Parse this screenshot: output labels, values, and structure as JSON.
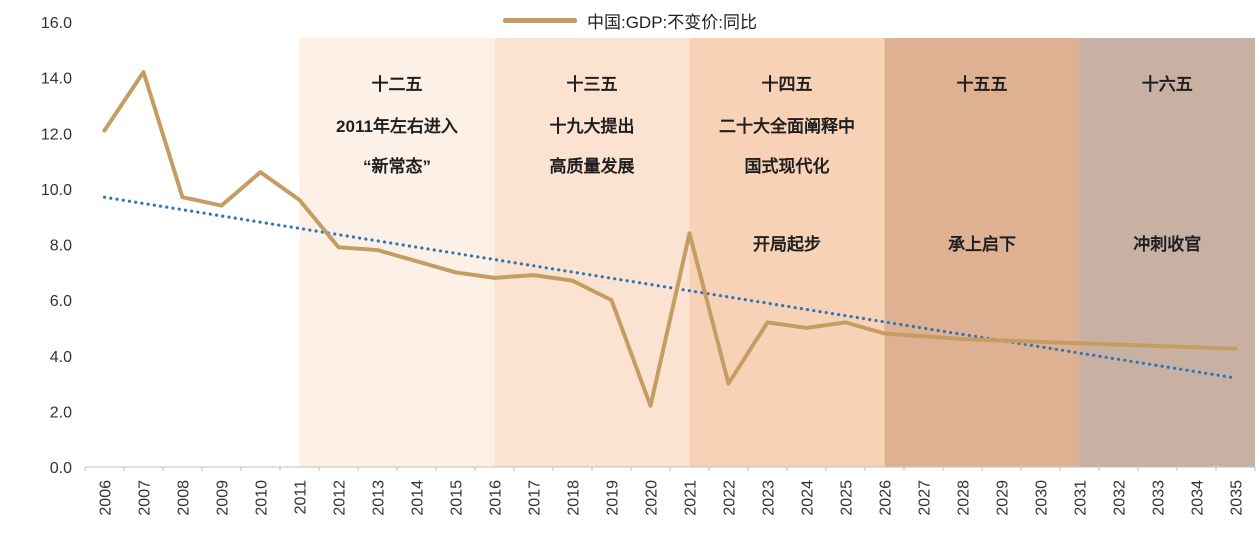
{
  "legend": {
    "label": "中国:GDP:不变价:同比"
  },
  "chart_data": {
    "type": "line",
    "x": [
      "2006",
      "2007",
      "2008",
      "2009",
      "2010",
      "2011",
      "2012",
      "2013",
      "2014",
      "2015",
      "2016",
      "2017",
      "2018",
      "2019",
      "2020",
      "2021",
      "2022",
      "2023",
      "2024",
      "2025",
      "2026",
      "2027",
      "2028",
      "2029",
      "2030",
      "2031",
      "2032",
      "2033",
      "2034",
      "2035"
    ],
    "series": [
      {
        "name": "中国:GDP:不变价:同比",
        "color": "#c59d63",
        "values": [
          12.1,
          14.2,
          9.7,
          9.4,
          10.6,
          9.6,
          7.9,
          7.8,
          7.4,
          7.0,
          6.8,
          6.9,
          6.7,
          6.0,
          2.2,
          8.4,
          3.0,
          5.2,
          5.0,
          5.2,
          4.8,
          4.7,
          4.6,
          4.55,
          4.5,
          4.45,
          4.4,
          4.35,
          4.3,
          4.25
        ]
      }
    ],
    "trend": {
      "style": "dotted",
      "color": "#2e75b6",
      "start_value": 9.7,
      "end_value": 3.2
    },
    "ylim": [
      0,
      16
    ],
    "ytick_labels": [
      "0.0",
      "2.0",
      "4.0",
      "6.0",
      "8.0",
      "10.0",
      "12.0",
      "14.0",
      "16.0"
    ],
    "grid": false,
    "legend_position": "top-center",
    "axis_color": "#bfbfbf",
    "bands": [
      {
        "label": "十二五",
        "start_year": 2011,
        "end_year": 2016,
        "color": "#fdf1e7",
        "annotation_lines": [
          "2011年左右进入",
          "“新常态”"
        ],
        "phase_label": ""
      },
      {
        "label": "十三五",
        "start_year": 2016,
        "end_year": 2021,
        "color": "#fce3d1",
        "annotation_lines": [
          "十九大提出",
          "高质量发展"
        ],
        "phase_label": ""
      },
      {
        "label": "十四五",
        "start_year": 2021,
        "end_year": 2026,
        "color": "#f8d2b7",
        "annotation_lines": [
          "二十大全面阐释中",
          "国式现代化"
        ],
        "phase_label": "开局起步"
      },
      {
        "label": "十五五",
        "start_year": 2026,
        "end_year": 2031,
        "color": "#dfb193",
        "annotation_lines": [],
        "phase_label": "承上启下"
      },
      {
        "label": "十六五",
        "start_year": 2031,
        "end_year": 2036,
        "color": "#c8b0a2",
        "annotation_lines": [],
        "phase_label": "冲刺收官"
      }
    ]
  }
}
